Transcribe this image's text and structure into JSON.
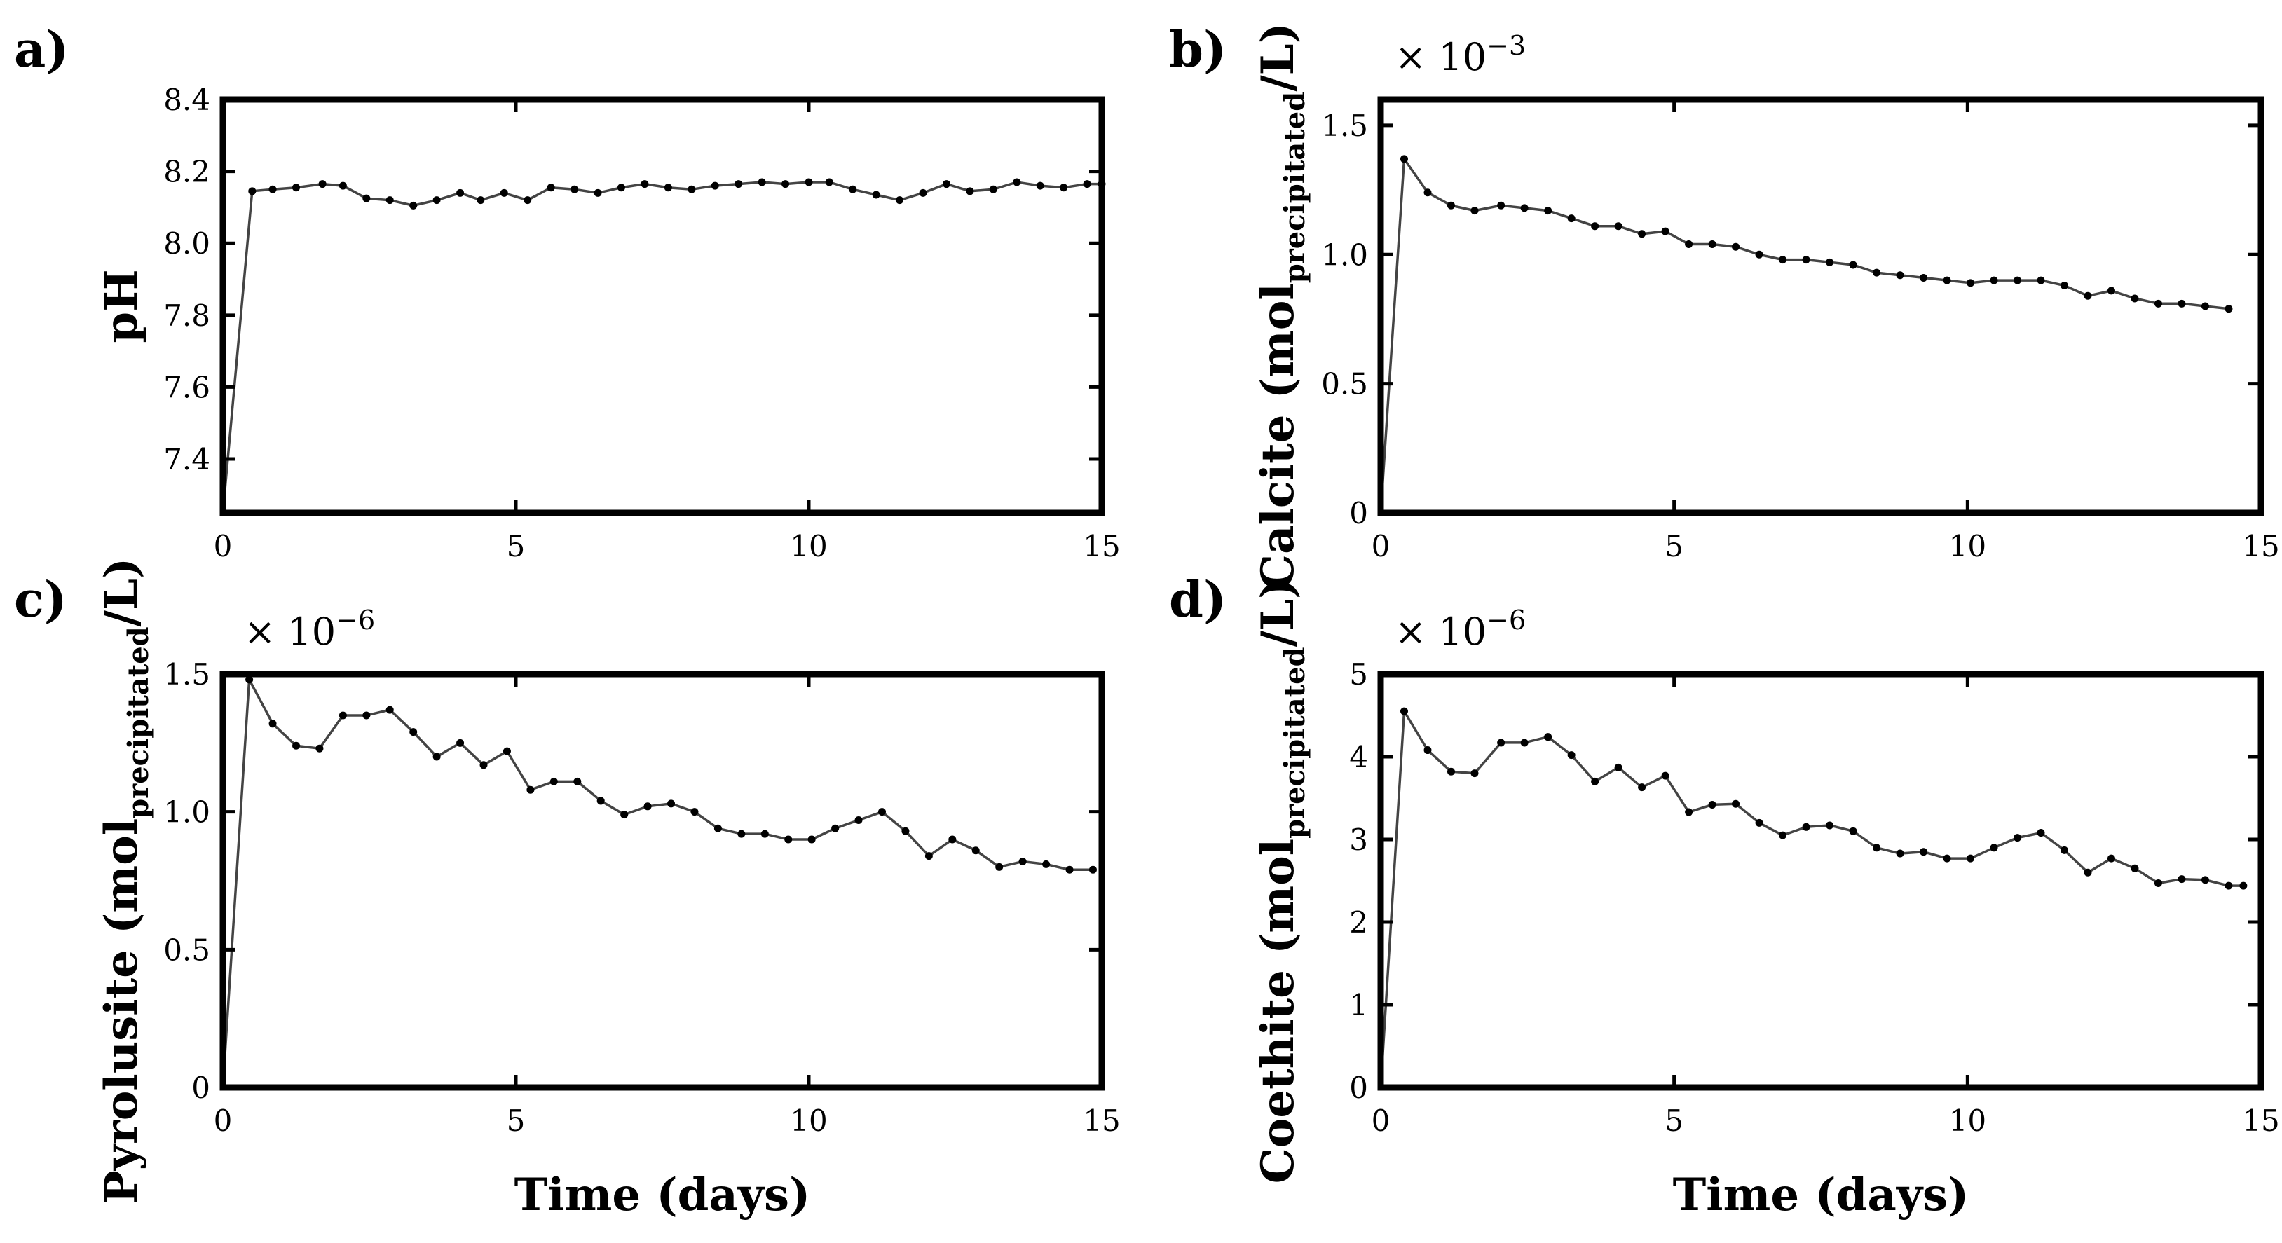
{
  "chart_data": [
    {
      "id": "a",
      "panel_label": "a)",
      "type": "line",
      "title": "",
      "xlabel": "",
      "ylabel": "pH",
      "ylabel_sub": "",
      "ylabel_end": "",
      "multiplier": "",
      "multiplier_exp": "",
      "xlim": [
        0,
        15
      ],
      "ylim": [
        7.25,
        8.4
      ],
      "xticks": [
        0,
        5,
        10,
        15
      ],
      "xtick_labels": [
        "0",
        "5",
        "10",
        "15"
      ],
      "yticks": [
        7.4,
        7.6,
        7.8,
        8.0,
        8.2,
        8.4
      ],
      "ytick_labels": [
        "7.4",
        "7.6",
        "7.8",
        "8.0",
        "8.2",
        "8.4"
      ],
      "x": [
        0.0,
        0.5,
        0.85,
        1.25,
        1.7,
        2.05,
        2.45,
        2.85,
        3.25,
        3.65,
        4.05,
        4.4,
        4.8,
        5.2,
        5.6,
        6.0,
        6.4,
        6.8,
        7.2,
        7.6,
        8.0,
        8.4,
        8.8,
        9.2,
        9.6,
        10.0,
        10.35,
        10.75,
        11.15,
        11.55,
        11.95,
        12.35,
        12.75,
        13.15,
        13.55,
        13.95,
        14.35,
        14.75,
        15.0
      ],
      "y": [
        7.25,
        8.145,
        8.15,
        8.155,
        8.165,
        8.16,
        8.125,
        8.12,
        8.105,
        8.12,
        8.14,
        8.12,
        8.14,
        8.12,
        8.155,
        8.15,
        8.14,
        8.155,
        8.165,
        8.155,
        8.15,
        8.16,
        8.165,
        8.17,
        8.165,
        8.17,
        8.17,
        8.15,
        8.135,
        8.12,
        8.14,
        8.165,
        8.145,
        8.15,
        8.17,
        8.16,
        8.155,
        8.165,
        8.165
      ]
    },
    {
      "id": "b",
      "panel_label": "b)",
      "type": "line",
      "title": "",
      "xlabel": "",
      "ylabel": "Calcite (mol",
      "ylabel_sub": "precipitated",
      "ylabel_end": "/L)",
      "multiplier": "× 10",
      "multiplier_exp": "−3",
      "xlim": [
        0,
        15
      ],
      "ylim": [
        0,
        1.6
      ],
      "xticks": [
        0,
        5,
        10,
        15
      ],
      "xtick_labels": [
        "0",
        "5",
        "10",
        "15"
      ],
      "yticks": [
        0,
        0.5,
        1.0,
        1.5
      ],
      "ytick_labels": [
        "0",
        "0.5",
        "1.0",
        "1.5"
      ],
      "x": [
        0.0,
        0.4,
        0.8,
        1.2,
        1.6,
        2.05,
        2.45,
        2.85,
        3.25,
        3.65,
        4.05,
        4.45,
        4.85,
        5.25,
        5.65,
        6.05,
        6.45,
        6.85,
        7.25,
        7.65,
        8.05,
        8.45,
        8.85,
        9.25,
        9.65,
        10.05,
        10.45,
        10.85,
        11.25,
        11.65,
        12.05,
        12.45,
        12.85,
        13.25,
        13.65,
        14.05,
        14.45
      ],
      "y": [
        0.0,
        1.37,
        1.24,
        1.19,
        1.17,
        1.19,
        1.18,
        1.17,
        1.14,
        1.11,
        1.11,
        1.08,
        1.09,
        1.04,
        1.04,
        1.03,
        1.0,
        0.98,
        0.98,
        0.97,
        0.96,
        0.93,
        0.92,
        0.91,
        0.9,
        0.89,
        0.9,
        0.9,
        0.9,
        0.88,
        0.84,
        0.86,
        0.83,
        0.81,
        0.81,
        0.8,
        0.79
      ]
    },
    {
      "id": "c",
      "panel_label": "c)",
      "type": "line",
      "title": "",
      "xlabel": "Time (days)",
      "ylabel": "Pyrolusite (mol",
      "ylabel_sub": "precipitated",
      "ylabel_end": "/L)",
      "multiplier": "× 10",
      "multiplier_exp": "−6",
      "xlim": [
        0,
        15
      ],
      "ylim": [
        0,
        1.5
      ],
      "xticks": [
        0,
        5,
        10,
        15
      ],
      "xtick_labels": [
        "0",
        "5",
        "10",
        "15"
      ],
      "yticks": [
        0,
        0.5,
        1.0,
        1.5
      ],
      "ytick_labels": [
        "0",
        "0.5",
        "1.0",
        "1.5"
      ],
      "x": [
        0.0,
        0.45,
        0.85,
        1.25,
        1.65,
        2.05,
        2.45,
        2.85,
        3.25,
        3.65,
        4.05,
        4.45,
        4.85,
        5.25,
        5.65,
        6.05,
        6.45,
        6.85,
        7.25,
        7.65,
        8.05,
        8.45,
        8.85,
        9.25,
        9.65,
        10.05,
        10.45,
        10.85,
        11.25,
        11.65,
        12.05,
        12.45,
        12.85,
        13.25,
        13.65,
        14.05,
        14.45,
        14.85
      ],
      "y": [
        0.0,
        1.48,
        1.32,
        1.24,
        1.23,
        1.35,
        1.35,
        1.37,
        1.29,
        1.2,
        1.25,
        1.17,
        1.22,
        1.08,
        1.11,
        1.11,
        1.04,
        0.99,
        1.02,
        1.03,
        1.0,
        0.94,
        0.92,
        0.92,
        0.9,
        0.9,
        0.94,
        0.97,
        1.0,
        0.93,
        0.84,
        0.9,
        0.86,
        0.8,
        0.82,
        0.81,
        0.79,
        0.79
      ]
    },
    {
      "id": "d",
      "panel_label": "d)",
      "type": "line",
      "title": "",
      "xlabel": "Time (days)",
      "ylabel": "Coethite (mol",
      "ylabel_sub": "precipitated",
      "ylabel_end": "/L)",
      "multiplier": "× 10",
      "multiplier_exp": "−6",
      "xlim": [
        0,
        15
      ],
      "ylim": [
        0,
        5
      ],
      "xticks": [
        0,
        5,
        10,
        15
      ],
      "xtick_labels": [
        "0",
        "5",
        "10",
        "15"
      ],
      "yticks": [
        0,
        1,
        2,
        3,
        4,
        5
      ],
      "ytick_labels": [
        "0",
        "1",
        "2",
        "3",
        "4",
        "5"
      ],
      "x": [
        0.0,
        0.4,
        0.8,
        1.2,
        1.6,
        2.05,
        2.45,
        2.85,
        3.25,
        3.65,
        4.05,
        4.45,
        4.85,
        5.25,
        5.65,
        6.05,
        6.45,
        6.85,
        7.25,
        7.65,
        8.05,
        8.45,
        8.85,
        9.25,
        9.65,
        10.05,
        10.45,
        10.85,
        11.25,
        11.65,
        12.05,
        12.45,
        12.85,
        13.25,
        13.65,
        14.05,
        14.45,
        14.7
      ],
      "y": [
        0.0,
        4.55,
        4.08,
        3.82,
        3.8,
        4.17,
        4.17,
        4.24,
        4.02,
        3.7,
        3.87,
        3.63,
        3.77,
        3.33,
        3.42,
        3.43,
        3.2,
        3.05,
        3.15,
        3.17,
        3.1,
        2.9,
        2.83,
        2.85,
        2.77,
        2.77,
        2.9,
        3.02,
        3.08,
        2.87,
        2.6,
        2.77,
        2.65,
        2.47,
        2.52,
        2.51,
        2.44,
        2.44
      ]
    }
  ]
}
